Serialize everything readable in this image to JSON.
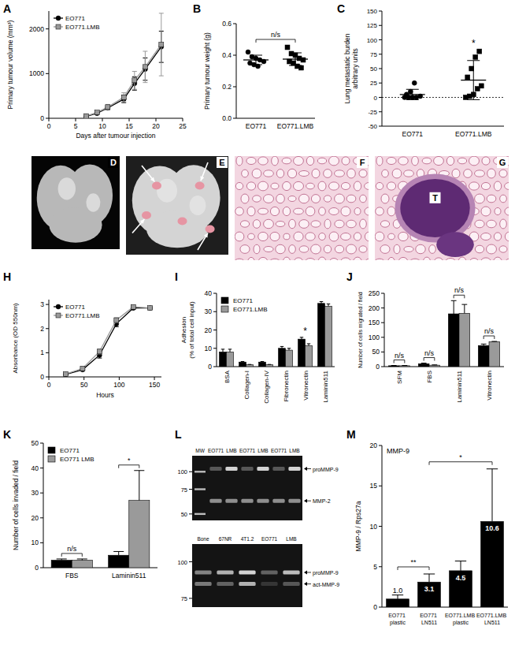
{
  "chart_data": [
    {
      "type": "line",
      "title": "A",
      "x_label": "Days after tumour injection",
      "y_label": "Primary tumour volume (mm³)",
      "x": [
        7,
        9,
        11,
        14,
        16,
        18,
        21
      ],
      "series": [
        {
          "name": "EO771",
          "color": "#000000",
          "marker": "circle",
          "values": [
            40,
            110,
            230,
            430,
            780,
            1100,
            1600
          ],
          "errors": [
            10,
            25,
            40,
            80,
            150,
            250,
            350
          ]
        },
        {
          "name": "EO771.LMB",
          "color": "#9a9a9a",
          "marker": "square",
          "values": [
            50,
            130,
            250,
            470,
            850,
            1150,
            1650
          ],
          "errors": [
            15,
            30,
            60,
            100,
            200,
            350,
            700
          ]
        }
      ],
      "xlim": [
        0,
        25
      ],
      "xticks": [
        0,
        5,
        10,
        15,
        20,
        25
      ],
      "ylim": [
        0,
        2400
      ],
      "yticks": [
        0,
        1000,
        2000
      ],
      "legend": "upper left"
    },
    {
      "type": "dot",
      "title": "B",
      "y_label": "Primary tumour weight (g)",
      "categories": [
        "EO771",
        "EO771.LMB"
      ],
      "groups": [
        {
          "marker": "circle",
          "color": "#000000",
          "values": [
            0.42,
            0.39,
            0.38,
            0.37,
            0.36,
            0.35,
            0.34,
            0.33
          ],
          "mean": 0.37,
          "sd": 0.03
        },
        {
          "marker": "square",
          "color": "#000000",
          "values": [
            0.45,
            0.41,
            0.4,
            0.38,
            0.37,
            0.36,
            0.35,
            0.33,
            0.32
          ],
          "mean": 0.375,
          "sd": 0.04
        }
      ],
      "ylim": [
        0,
        0.6
      ],
      "yticks": [
        {
          "value": 0,
          "label": "0.0"
        },
        0.2,
        0.4,
        0.6
      ],
      "annotations": [
        {
          "text": "n/s"
        }
      ]
    },
    {
      "type": "dot",
      "title": "C",
      "y_label": [
        "Lung metastatic burden",
        "arbitrary units"
      ],
      "categories": [
        "EO771",
        "EO771.LMB"
      ],
      "groups": [
        {
          "marker": "circle",
          "color": "#000000",
          "values": [
            0,
            0,
            0,
            0,
            2,
            5,
            10,
            25
          ],
          "mean": 5,
          "sd": 9
        },
        {
          "marker": "square",
          "color": "#000000",
          "values": [
            0,
            2,
            5,
            15,
            20,
            35,
            50,
            70,
            80
          ],
          "mean": 30,
          "sd": 34
        }
      ],
      "ylim": [
        -50,
        150
      ],
      "yticks": [
        -50,
        -25,
        0,
        25,
        50,
        75,
        100,
        125,
        150
      ],
      "reference_line": 0,
      "annotations": [
        {
          "text": "*",
          "category": "EO771.LMB"
        }
      ]
    },
    {
      "type": "line",
      "title": "H",
      "x_label": "Hours",
      "y_label": "Absorbance (OD 550nm)",
      "x": [
        24,
        48,
        72,
        96,
        120,
        144
      ],
      "series": [
        {
          "name": "EO771",
          "color": "#000000",
          "marker": "circle",
          "values": [
            0.1,
            0.3,
            0.9,
            2.2,
            2.85,
            2.85
          ],
          "errors": [
            0.02,
            0.03,
            0.12,
            0.12,
            0.05,
            0.05
          ]
        },
        {
          "name": "EO771.LMB",
          "color": "#9a9a9a",
          "marker": "square",
          "values": [
            0.12,
            0.35,
            1.05,
            2.35,
            2.9,
            2.85
          ],
          "errors": [
            0.02,
            0.03,
            0.1,
            0.1,
            0.05,
            0.05
          ]
        }
      ],
      "xlim": [
        0,
        160
      ],
      "xticks": [
        0,
        50,
        100,
        150
      ],
      "ylim": [
        0,
        3.2
      ],
      "yticks": [
        0,
        1,
        2,
        3
      ],
      "legend": "upper left"
    },
    {
      "type": "bar",
      "title": "I",
      "y_label": [
        "Adhesion",
        "(% of total cell input)"
      ],
      "categories": [
        "BSA",
        "Collagen-I",
        "Collagen-IV",
        "Fibronectin",
        "Vitronectin",
        "Laminin511"
      ],
      "series": [
        {
          "name": "EO771",
          "color": "#000000",
          "values": [
            8,
            2.5,
            2.5,
            10,
            15,
            34.5
          ],
          "errors": [
            1.5,
            0.3,
            0.3,
            1,
            1,
            1
          ]
        },
        {
          "name": "EO771.LMB",
          "color": "#9a9a9a",
          "values": [
            8,
            1,
            1,
            9,
            11.5,
            33
          ],
          "errors": [
            1.5,
            0.2,
            0.2,
            1,
            1,
            1.2
          ]
        }
      ],
      "ylim": [
        0,
        40
      ],
      "yticks": [
        0,
        10,
        20,
        30,
        40
      ],
      "legend": "upper left",
      "annotations": [
        {
          "text": "*",
          "category": "Vitronectin"
        }
      ]
    },
    {
      "type": "bar",
      "title": "J",
      "y_label": "Number of cells migrated / field",
      "categories": [
        "SFM",
        "FBS",
        "Laminin511",
        "Vitronectin"
      ],
      "series": [
        {
          "color": "#000000",
          "values": [
            3,
            10,
            180,
            72
          ],
          "errors": [
            1,
            2,
            45,
            5
          ]
        },
        {
          "color": "#9a9a9a",
          "values": [
            3,
            5,
            182,
            85
          ],
          "errors": [
            1,
            1,
            30,
            1
          ]
        }
      ],
      "ylim": [
        0,
        250
      ],
      "yticks": [
        0,
        50,
        100,
        150,
        200,
        250
      ],
      "annotations": [
        {
          "text": "n/s",
          "category": "SFM"
        },
        {
          "text": "n/s",
          "category": "FBS"
        },
        {
          "text": "n/s",
          "category": "Laminin511"
        },
        {
          "text": "n/s",
          "category": "Vitronectin"
        }
      ]
    },
    {
      "type": "bar",
      "title": "K",
      "y_label": "Number of cells invaded / field",
      "categories": [
        "FBS",
        "Laminin511"
      ],
      "series": [
        {
          "name": "EO771",
          "color": "#000000",
          "values": [
            3,
            5
          ],
          "errors": [
            0.5,
            1.5
          ]
        },
        {
          "name": "EO771 LMB",
          "color": "#9a9a9a",
          "values": [
            3,
            27
          ],
          "errors": [
            0.5,
            12
          ]
        }
      ],
      "ylim": [
        0,
        50
      ],
      "yticks": [
        0,
        10,
        20,
        30,
        40,
        50
      ],
      "legend": "upper left",
      "annotations": [
        {
          "text": "n/s",
          "category": "FBS"
        },
        {
          "text": "*",
          "category": "Laminin511"
        }
      ]
    },
    {
      "type": "bar",
      "title": "M",
      "subtitle": "MMP-9",
      "y_label": "MMP-9 / Rps27a",
      "categories": [
        "EO771 plastic",
        "EO771 LN511",
        "EO771.LMB plastic",
        "EO771.LMB LN511"
      ],
      "series": [
        {
          "color": "#000000",
          "values": [
            1.0,
            3.1,
            4.5,
            10.6
          ],
          "value_labels": [
            "1.0",
            "3.1",
            "4.5",
            "10.6"
          ],
          "errors": [
            0.5,
            1,
            1.2,
            6.5
          ]
        }
      ],
      "ylim": [
        0,
        20
      ],
      "yticks": [
        0,
        5,
        10,
        15,
        20
      ],
      "data_labels": true,
      "annotations": [
        {
          "text": "**",
          "from": "EO771 plastic",
          "to": "EO771 LN511"
        },
        {
          "text": "*",
          "from": "EO771 LN511",
          "to": "EO771.LMB LN511"
        }
      ]
    }
  ],
  "image_panels": [
    {
      "label": "D"
    },
    {
      "label": "E"
    },
    {
      "label": "F"
    },
    {
      "label": "G",
      "annotation": "T"
    }
  ],
  "gel_panel": {
    "label": "L",
    "gels": [
      {
        "lanes": [
          "MW",
          "EO771",
          "LMB",
          "EO771",
          "LMB",
          "EO771",
          "LMB"
        ],
        "ylim": [
          130,
          45
        ],
        "log": "y",
        "markers": [
          100,
          75,
          50
        ],
        "bands": [
          {
            "label": "proMMP-9",
            "value": 105,
            "intensity": [
              0,
              0.3,
              0.85,
              0.3,
              0.85,
              0.3,
              0.85
            ]
          },
          {
            "label": "MMP-2",
            "value": 62,
            "intensity": [
              0,
              0.55,
              0.55,
              0.55,
              0.55,
              0.55,
              0.55
            ]
          }
        ]
      },
      {
        "lanes": [
          "Bone",
          "67NR",
          "4T1.2",
          "EO771",
          "LMB"
        ],
        "ylim": [
          115,
          70
        ],
        "log": "y",
        "markers": [
          100,
          75
        ],
        "bands": [
          {
            "label": "proMMP-9",
            "value": 92,
            "intensity": [
              0.5,
              0.7,
              0.85,
              0.35,
              0.75
            ]
          },
          {
            "label": "act-MMP-9",
            "value": 84,
            "intensity": [
              0.45,
              0.35,
              0.7,
              0.15,
              0.3
            ]
          }
        ]
      }
    ]
  }
}
